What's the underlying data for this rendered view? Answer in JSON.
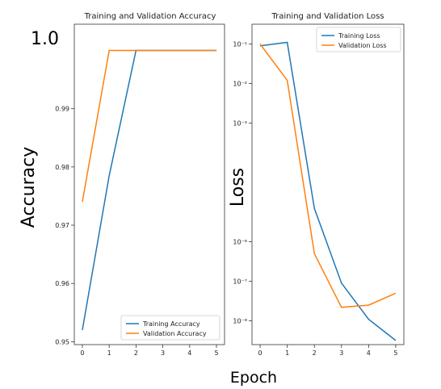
{
  "figure": {
    "ylabel_big_left": "Accuracy",
    "ylabel_big_right": "Loss",
    "xlabel_big": "Epoch",
    "big_top_tick": "1.0"
  },
  "chart_data": [
    {
      "type": "line",
      "title": "Training and Validation Accuracy",
      "x": [
        0,
        1,
        2,
        3,
        4,
        5
      ],
      "xlim": [
        -0.3,
        5.3
      ],
      "ylim": [
        0.9495,
        1.0045
      ],
      "xticks": [
        "0",
        "1",
        "2",
        "3",
        "4",
        "5"
      ],
      "yticks": [
        {
          "value": 0.95,
          "label": "0.95"
        },
        {
          "value": 0.96,
          "label": "0.96"
        },
        {
          "value": 0.97,
          "label": "0.97"
        },
        {
          "value": 0.98,
          "label": "0.98"
        },
        {
          "value": 0.99,
          "label": "0.99"
        }
      ],
      "series": [
        {
          "name": "Training Accuracy",
          "color": "#1f77b4",
          "values": [
            0.952,
            0.9785,
            1.0,
            1.0,
            1.0,
            1.0
          ]
        },
        {
          "name": "Validation Accuracy",
          "color": "#ff7f0e",
          "values": [
            0.974,
            1.0,
            1.0,
            1.0,
            1.0,
            1.0
          ]
        }
      ],
      "legend": "lower-right",
      "grid": false
    },
    {
      "type": "line",
      "title": "Training and Validation Loss",
      "scale_y": "log",
      "x": [
        0,
        1,
        2,
        3,
        4,
        5
      ],
      "xlim": [
        -0.3,
        5.3
      ],
      "ylim_log10": [
        -8.6,
        -0.5
      ],
      "xticks": [
        "0",
        "1",
        "2",
        "3",
        "4",
        "5"
      ],
      "yticks": [
        {
          "exp": -1,
          "label": "10⁻¹"
        },
        {
          "exp": -2,
          "label": "10⁻²"
        },
        {
          "exp": -3,
          "label": "10⁻³"
        },
        {
          "exp": -6,
          "label": "10⁻⁶"
        },
        {
          "exp": -7,
          "label": "10⁻⁷"
        },
        {
          "exp": -8,
          "label": "10⁻⁸"
        }
      ],
      "series": [
        {
          "name": "Training Loss",
          "color": "#1f77b4",
          "values": [
            0.09,
            0.11,
            7e-06,
            9e-08,
            1.1e-08,
            3.2e-09
          ]
        },
        {
          "name": "Validation Loss",
          "color": "#ff7f0e",
          "values": [
            0.1,
            0.012,
            5e-07,
            2.2e-08,
            2.5e-08,
            5e-08
          ]
        }
      ],
      "legend": "top-right",
      "grid": false
    }
  ]
}
